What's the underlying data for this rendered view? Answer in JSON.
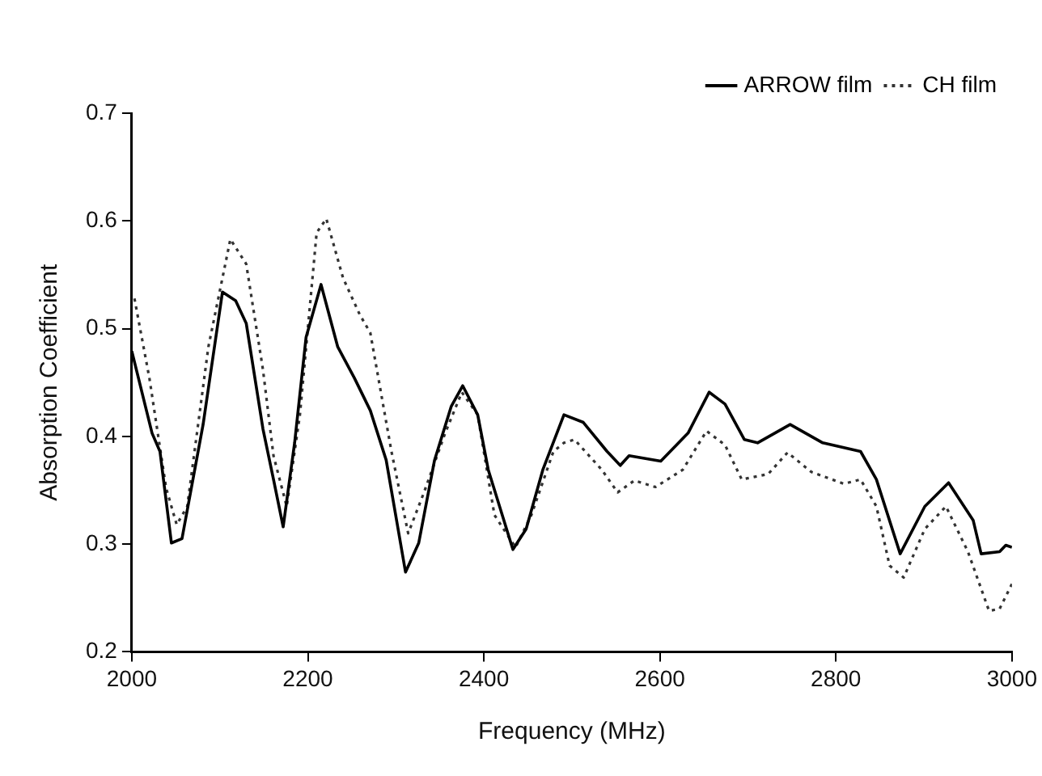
{
  "chart_data": {
    "type": "line",
    "xlabel": "Frequency (MHz)",
    "ylabel": "Absorption Coefficient",
    "xlim": [
      2000,
      3000
    ],
    "xticks": [
      2000,
      2200,
      2400,
      2600,
      2800,
      3000
    ],
    "ylim": [
      0.2,
      0.7
    ],
    "yticks": [
      0.2,
      0.3,
      0.4,
      0.5,
      0.6,
      0.7
    ],
    "grid": false,
    "legend": "top right",
    "marker": "none",
    "series": [
      {
        "name": "ARROW film",
        "color": "#000000",
        "line_style": "solid",
        "x": [
          2000,
          2023,
          2032,
          2045,
          2057,
          2081,
          2103,
          2118,
          2130,
          2149,
          2161,
          2172,
          2185,
          2198,
          2215,
          2234,
          2253,
          2271,
          2289,
          2311,
          2326,
          2344,
          2363,
          2376,
          2393,
          2405,
          2433,
          2448,
          2467,
          2491,
          2513,
          2540,
          2555,
          2565,
          2601,
          2632,
          2656,
          2674,
          2696,
          2711,
          2748,
          2785,
          2828,
          2846,
          2873,
          2901,
          2928,
          2956,
          2965,
          2986,
          2993,
          3000
        ],
        "values": [
          0.479,
          0.403,
          0.386,
          0.301,
          0.305,
          0.411,
          0.534,
          0.526,
          0.505,
          0.407,
          0.36,
          0.316,
          0.394,
          0.492,
          0.541,
          0.483,
          0.454,
          0.424,
          0.378,
          0.274,
          0.301,
          0.378,
          0.428,
          0.447,
          0.42,
          0.369,
          0.295,
          0.314,
          0.369,
          0.42,
          0.413,
          0.386,
          0.373,
          0.382,
          0.377,
          0.403,
          0.441,
          0.43,
          0.397,
          0.394,
          0.411,
          0.394,
          0.386,
          0.36,
          0.291,
          0.335,
          0.357,
          0.322,
          0.291,
          0.293,
          0.299,
          0.297
        ]
      },
      {
        "name": "CH film",
        "color": "#333333",
        "line_style": "dotted",
        "x": [
          2003,
          2020,
          2039,
          2051,
          2063,
          2087,
          2112,
          2130,
          2149,
          2161,
          2176,
          2191,
          2210,
          2221,
          2240,
          2259,
          2271,
          2295,
          2314,
          2332,
          2356,
          2375,
          2393,
          2412,
          2436,
          2454,
          2479,
          2491,
          2503,
          2534,
          2552,
          2571,
          2595,
          2626,
          2653,
          2674,
          2693,
          2723,
          2745,
          2772,
          2809,
          2828,
          2846,
          2861,
          2877,
          2901,
          2925,
          2950,
          2974,
          2986,
          3000
        ],
        "values": [
          0.528,
          0.454,
          0.352,
          0.318,
          0.335,
          0.483,
          0.583,
          0.56,
          0.462,
          0.382,
          0.335,
          0.42,
          0.589,
          0.602,
          0.547,
          0.513,
          0.496,
          0.386,
          0.31,
          0.348,
          0.403,
          0.441,
          0.42,
          0.327,
          0.297,
          0.327,
          0.386,
          0.394,
          0.397,
          0.369,
          0.348,
          0.359,
          0.353,
          0.369,
          0.405,
          0.392,
          0.36,
          0.365,
          0.385,
          0.367,
          0.356,
          0.36,
          0.335,
          0.28,
          0.269,
          0.314,
          0.335,
          0.293,
          0.238,
          0.24,
          0.263
        ]
      }
    ]
  }
}
